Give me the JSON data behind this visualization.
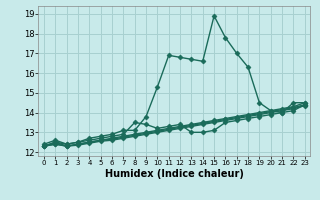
{
  "title": "",
  "xlabel": "Humidex (Indice chaleur)",
  "ylabel": "",
  "bg_color": "#c8eaea",
  "grid_color": "#a8d0d0",
  "line_color": "#1a6b5a",
  "xlim": [
    -0.5,
    23.5
  ],
  "ylim": [
    11.8,
    19.4
  ],
  "xticks": [
    0,
    1,
    2,
    3,
    4,
    5,
    6,
    7,
    8,
    9,
    10,
    11,
    12,
    13,
    14,
    15,
    16,
    17,
    18,
    19,
    20,
    21,
    22,
    23
  ],
  "yticks": [
    12,
    13,
    14,
    15,
    16,
    17,
    18,
    19
  ],
  "series": [
    {
      "x": [
        0,
        1,
        2,
        3,
        4,
        5,
        6,
        7,
        8,
        9,
        10,
        11,
        12,
        13,
        14,
        15,
        16,
        17,
        18,
        19,
        20,
        21,
        22,
        23
      ],
      "y": [
        12.4,
        12.6,
        12.4,
        12.5,
        12.7,
        12.8,
        12.9,
        13.1,
        13.1,
        13.8,
        15.3,
        16.9,
        16.8,
        16.7,
        16.6,
        18.9,
        17.8,
        17.0,
        16.3,
        14.5,
        14.1,
        14.0,
        14.5,
        14.5
      ],
      "marker": "D",
      "markersize": 2.5,
      "lw": 1.0
    },
    {
      "x": [
        0,
        1,
        2,
        3,
        4,
        5,
        6,
        7,
        8,
        9,
        10,
        11,
        12,
        13,
        14,
        15,
        16,
        17,
        18,
        19,
        20,
        21,
        22,
        23
      ],
      "y": [
        12.3,
        12.5,
        12.4,
        12.5,
        12.6,
        12.7,
        12.8,
        12.9,
        13.5,
        13.4,
        13.2,
        13.3,
        13.4,
        13.0,
        13.0,
        13.1,
        13.5,
        13.6,
        13.7,
        13.8,
        13.9,
        14.0,
        14.1,
        14.4
      ],
      "marker": "D",
      "markersize": 2.5,
      "lw": 1.0
    },
    {
      "x": [
        0,
        1,
        2,
        3,
        4,
        5,
        6,
        7,
        8,
        9,
        10,
        11,
        12,
        13,
        14,
        15,
        16,
        17,
        18,
        19,
        20,
        21,
        22,
        23
      ],
      "y": [
        12.3,
        12.5,
        12.3,
        12.4,
        12.5,
        12.6,
        12.7,
        12.8,
        12.9,
        13.0,
        13.1,
        13.2,
        13.3,
        13.4,
        13.5,
        13.6,
        13.7,
        13.8,
        13.9,
        14.0,
        14.1,
        14.2,
        14.3,
        14.5
      ],
      "marker": "D",
      "markersize": 2.5,
      "lw": 1.0
    },
    {
      "x": [
        0,
        1,
        2,
        3,
        4,
        5,
        6,
        7,
        8,
        9,
        10,
        11,
        12,
        13,
        14,
        15,
        16,
        17,
        18,
        19,
        20,
        21,
        22,
        23
      ],
      "y": [
        12.3,
        12.4,
        12.3,
        12.4,
        12.5,
        12.6,
        12.65,
        12.75,
        12.85,
        12.95,
        13.05,
        13.15,
        13.25,
        13.35,
        13.45,
        13.55,
        13.65,
        13.75,
        13.85,
        13.95,
        14.05,
        14.15,
        14.25,
        14.4
      ],
      "marker": "D",
      "markersize": 2.5,
      "lw": 1.0
    },
    {
      "x": [
        0,
        1,
        2,
        3,
        4,
        5,
        6,
        7,
        8,
        9,
        10,
        11,
        12,
        13,
        14,
        15,
        16,
        17,
        18,
        19,
        20,
        21,
        22,
        23
      ],
      "y": [
        12.3,
        12.4,
        12.3,
        12.35,
        12.45,
        12.55,
        12.6,
        12.7,
        12.8,
        12.9,
        13.0,
        13.1,
        13.2,
        13.3,
        13.4,
        13.5,
        13.6,
        13.7,
        13.8,
        13.9,
        14.0,
        14.1,
        14.2,
        14.35
      ],
      "marker": "D",
      "markersize": 2.5,
      "lw": 1.0
    }
  ]
}
